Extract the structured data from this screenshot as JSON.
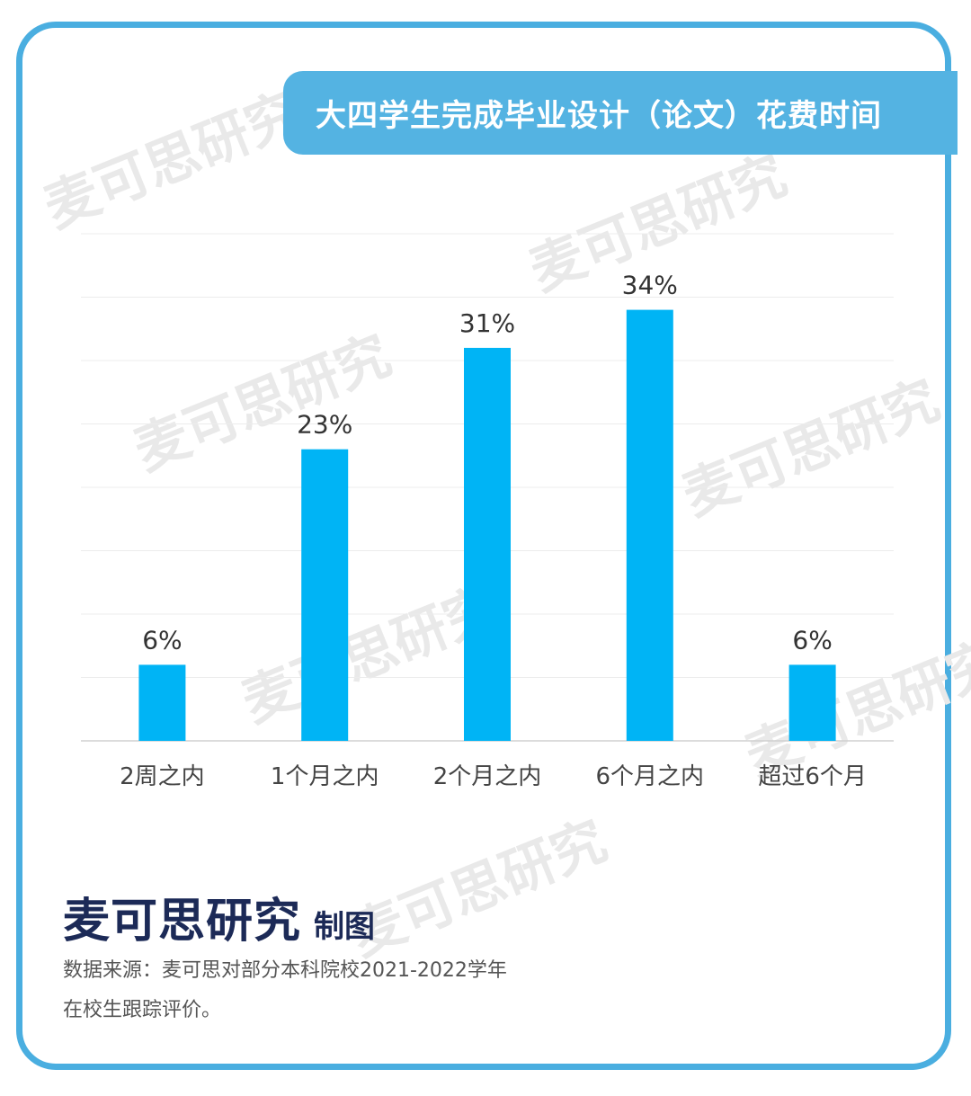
{
  "title": "大四学生完成毕业设计（论文）花费时间",
  "watermark": "麦可思研究",
  "chart_data": {
    "type": "bar",
    "categories": [
      "2周之内",
      "1个月之内",
      "2个月之内",
      "6个月之内",
      "超过6个月"
    ],
    "values": [
      6,
      23,
      31,
      34,
      6
    ],
    "data_labels": [
      "6%",
      "23%",
      "31%",
      "34%",
      "6%"
    ],
    "unit": "%",
    "ylim": [
      0,
      40
    ],
    "grid": true,
    "legend": "none",
    "colors": {
      "bar": "#00b4f5",
      "grid": "#ececec",
      "axis": "#d0d0d0",
      "label": "#333333",
      "tick": "#444444"
    }
  },
  "footer": {
    "brand": "麦可思研究",
    "brand_suffix": "制图",
    "source_line1": "数据来源：麦可思对部分本科院校2021-2022学年",
    "source_line2": "在校生跟踪评价。"
  },
  "colors": {
    "frame": "#4aaee0",
    "title_bar": "#54b3e2",
    "brand_text": "#1c2a57"
  }
}
